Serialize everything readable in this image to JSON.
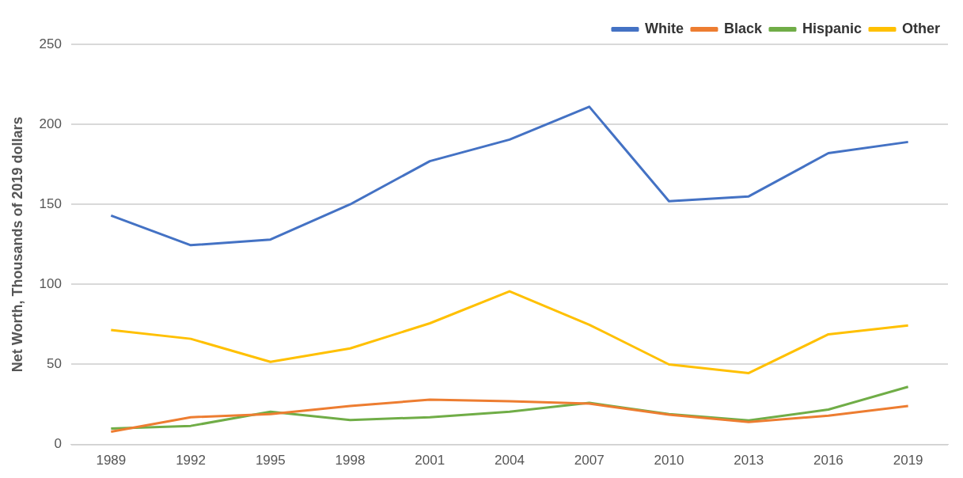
{
  "chart_data": {
    "type": "line",
    "ylabel": "Net Worth, Thousands of 2019 dollars",
    "categories": [
      "1989",
      "1992",
      "1995",
      "1998",
      "2001",
      "2004",
      "2007",
      "2010",
      "2013",
      "2016",
      "2019"
    ],
    "series": [
      {
        "name": "White",
        "color": "#4472c4",
        "values": [
          143,
          124.5,
          128,
          150,
          177,
          190.5,
          211,
          152,
          155,
          182,
          189
        ]
      },
      {
        "name": "Black",
        "color": "#ed7d31",
        "values": [
          8,
          17,
          19,
          24,
          28,
          27,
          25.5,
          18.6,
          14,
          18,
          24
        ]
      },
      {
        "name": "Hispanic",
        "color": "#70ad47",
        "values": [
          10,
          11.6,
          20.4,
          15.3,
          17,
          20.4,
          26,
          19,
          15,
          21.8,
          36
        ]
      },
      {
        "name": "Other",
        "color": "#ffc000",
        "values": [
          71.5,
          66,
          51.6,
          60,
          75.7,
          95.7,
          74.8,
          50,
          44.6,
          68.8,
          74.3
        ]
      }
    ],
    "ylim": [
      0,
      250
    ],
    "yticks": [
      0,
      50,
      100,
      150,
      200,
      250
    ],
    "grid": "y",
    "legend": "top right",
    "marker": "none",
    "line_style": "solid"
  }
}
